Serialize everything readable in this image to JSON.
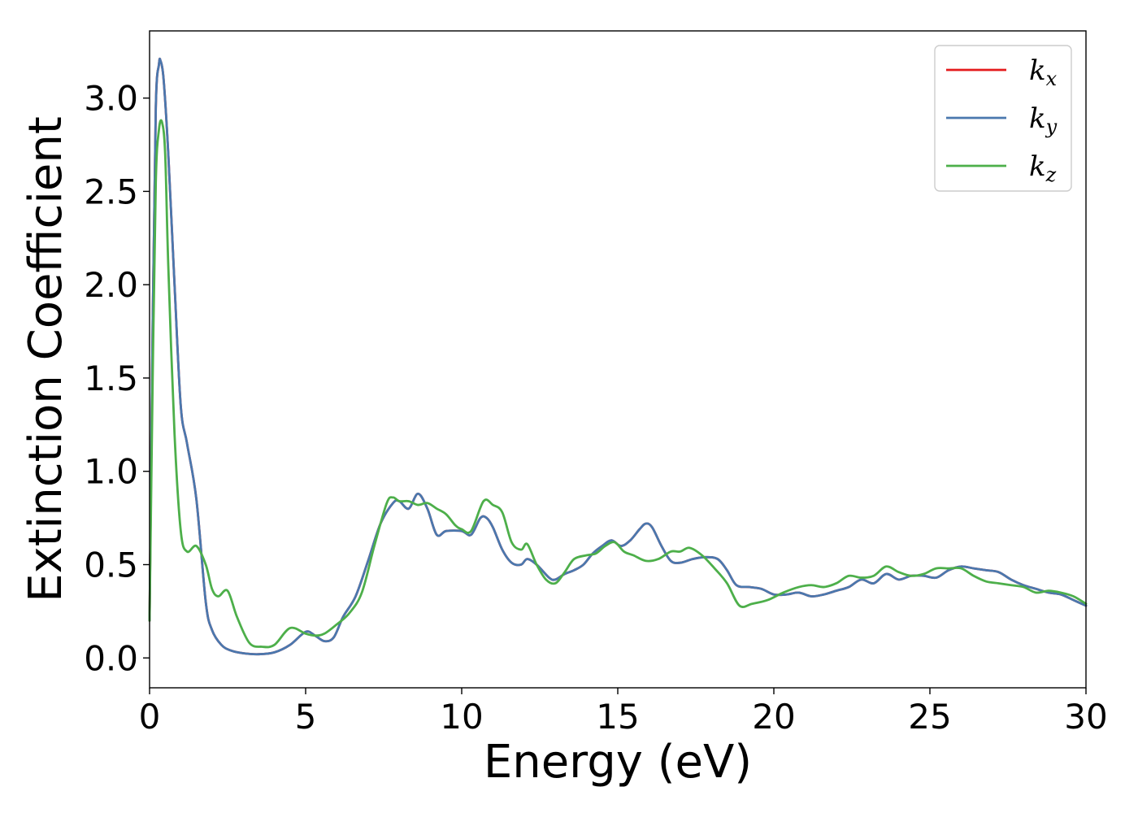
{
  "chart_data": {
    "type": "line",
    "title": "",
    "xlabel": "Energy (eV)",
    "ylabel": "Extinction Coefficient",
    "xlim": [
      0,
      30
    ],
    "ylim": [
      -0.16,
      3.36
    ],
    "xticks": [
      0,
      5,
      10,
      15,
      20,
      25,
      30
    ],
    "xtick_labels": [
      "0",
      "5",
      "10",
      "15",
      "20",
      "25",
      "30"
    ],
    "yticks": [
      0.0,
      0.5,
      1.0,
      1.5,
      2.0,
      2.5,
      3.0
    ],
    "ytick_labels": [
      "0.0",
      "0.5",
      "1.0",
      "1.5",
      "2.0",
      "2.5",
      "3.0"
    ],
    "grid": false,
    "legend_position": "top-right",
    "series": [
      {
        "name": "k_x",
        "label_base": "k",
        "label_sub": "x",
        "color": "#e41a1c",
        "x": [
          0.0,
          0.1,
          0.2,
          0.3,
          0.35,
          0.45,
          0.6,
          0.8,
          1.0,
          1.2,
          1.5,
          1.8,
          2.0,
          2.3,
          2.6,
          3.0,
          3.5,
          4.0,
          4.5,
          5.0,
          5.3,
          5.6,
          5.9,
          6.2,
          6.6,
          7.0,
          7.4,
          7.8,
          8.0,
          8.3,
          8.6,
          8.9,
          9.2,
          9.5,
          10.0,
          10.3,
          10.6,
          10.8,
          11.0,
          11.3,
          11.6,
          11.9,
          12.1,
          12.4,
          12.8,
          13.0,
          13.3,
          13.6,
          13.9,
          14.2,
          14.5,
          14.8,
          15.1,
          15.4,
          15.7,
          15.9,
          16.1,
          16.4,
          16.7,
          17.0,
          17.4,
          17.8,
          18.2,
          18.5,
          18.8,
          19.2,
          19.6,
          20.0,
          20.4,
          20.8,
          21.2,
          21.6,
          22.0,
          22.4,
          22.8,
          23.2,
          23.6,
          24.0,
          24.4,
          24.8,
          25.2,
          25.6,
          26.0,
          26.4,
          26.8,
          27.2,
          27.6,
          28.0,
          28.4,
          28.8,
          29.2,
          29.6,
          30.0
        ],
        "values": [
          0.2,
          1.8,
          2.95,
          3.18,
          3.2,
          3.1,
          2.7,
          2.0,
          1.35,
          1.15,
          0.85,
          0.3,
          0.15,
          0.07,
          0.04,
          0.025,
          0.02,
          0.03,
          0.07,
          0.14,
          0.12,
          0.09,
          0.11,
          0.22,
          0.33,
          0.52,
          0.72,
          0.83,
          0.84,
          0.8,
          0.88,
          0.8,
          0.66,
          0.68,
          0.68,
          0.66,
          0.75,
          0.75,
          0.7,
          0.58,
          0.51,
          0.5,
          0.53,
          0.5,
          0.43,
          0.42,
          0.45,
          0.47,
          0.5,
          0.56,
          0.6,
          0.63,
          0.6,
          0.63,
          0.69,
          0.72,
          0.7,
          0.6,
          0.52,
          0.51,
          0.53,
          0.54,
          0.53,
          0.47,
          0.39,
          0.38,
          0.37,
          0.34,
          0.34,
          0.35,
          0.33,
          0.34,
          0.36,
          0.38,
          0.42,
          0.4,
          0.45,
          0.42,
          0.44,
          0.44,
          0.43,
          0.47,
          0.49,
          0.48,
          0.47,
          0.46,
          0.42,
          0.39,
          0.37,
          0.35,
          0.34,
          0.31,
          0.28
        ]
      },
      {
        "name": "k_y",
        "label_base": "k",
        "label_sub": "y",
        "color": "#4a78ae",
        "x": [
          0.0,
          0.1,
          0.2,
          0.3,
          0.35,
          0.45,
          0.6,
          0.8,
          1.0,
          1.2,
          1.5,
          1.8,
          2.0,
          2.3,
          2.6,
          3.0,
          3.5,
          4.0,
          4.5,
          5.0,
          5.3,
          5.6,
          5.9,
          6.2,
          6.6,
          7.0,
          7.4,
          7.8,
          8.0,
          8.3,
          8.6,
          8.9,
          9.2,
          9.5,
          10.0,
          10.3,
          10.6,
          10.8,
          11.0,
          11.3,
          11.6,
          11.9,
          12.1,
          12.4,
          12.8,
          13.0,
          13.3,
          13.6,
          13.9,
          14.2,
          14.5,
          14.8,
          15.1,
          15.4,
          15.7,
          15.9,
          16.1,
          16.4,
          16.7,
          17.0,
          17.4,
          17.8,
          18.2,
          18.5,
          18.8,
          19.2,
          19.6,
          20.0,
          20.4,
          20.8,
          21.2,
          21.6,
          22.0,
          22.4,
          22.8,
          23.2,
          23.6,
          24.0,
          24.4,
          24.8,
          25.2,
          25.6,
          26.0,
          26.4,
          26.8,
          27.2,
          27.6,
          28.0,
          28.4,
          28.8,
          29.2,
          29.6,
          30.0
        ],
        "values": [
          0.2,
          1.8,
          2.95,
          3.18,
          3.2,
          3.1,
          2.7,
          2.0,
          1.35,
          1.15,
          0.85,
          0.3,
          0.15,
          0.07,
          0.04,
          0.025,
          0.02,
          0.03,
          0.07,
          0.14,
          0.12,
          0.09,
          0.11,
          0.22,
          0.33,
          0.52,
          0.72,
          0.83,
          0.84,
          0.8,
          0.88,
          0.8,
          0.66,
          0.68,
          0.68,
          0.66,
          0.75,
          0.75,
          0.7,
          0.58,
          0.51,
          0.5,
          0.53,
          0.5,
          0.43,
          0.42,
          0.45,
          0.47,
          0.5,
          0.56,
          0.6,
          0.63,
          0.6,
          0.63,
          0.69,
          0.72,
          0.7,
          0.6,
          0.52,
          0.51,
          0.53,
          0.54,
          0.53,
          0.47,
          0.39,
          0.38,
          0.37,
          0.34,
          0.34,
          0.35,
          0.33,
          0.34,
          0.36,
          0.38,
          0.42,
          0.4,
          0.45,
          0.42,
          0.44,
          0.44,
          0.43,
          0.47,
          0.49,
          0.48,
          0.47,
          0.46,
          0.42,
          0.39,
          0.37,
          0.35,
          0.34,
          0.31,
          0.28
        ]
      },
      {
        "name": "k_z",
        "label_base": "k",
        "label_sub": "z",
        "color": "#4daf4a",
        "x": [
          0.0,
          0.1,
          0.2,
          0.3,
          0.4,
          0.5,
          0.6,
          0.8,
          1.0,
          1.2,
          1.5,
          1.8,
          2.0,
          2.2,
          2.5,
          2.8,
          3.2,
          3.6,
          4.0,
          4.5,
          5.0,
          5.3,
          5.6,
          6.0,
          6.4,
          6.8,
          7.2,
          7.6,
          7.8,
          8.0,
          8.3,
          8.6,
          8.9,
          9.2,
          9.5,
          9.8,
          10.0,
          10.3,
          10.7,
          11.0,
          11.3,
          11.6,
          11.9,
          12.1,
          12.4,
          12.7,
          13.0,
          13.3,
          13.6,
          14.0,
          14.3,
          14.6,
          14.9,
          15.2,
          15.5,
          15.9,
          16.3,
          16.7,
          17.0,
          17.3,
          17.7,
          18.1,
          18.5,
          18.9,
          19.3,
          19.8,
          20.3,
          20.8,
          21.2,
          21.6,
          22.0,
          22.4,
          22.8,
          23.2,
          23.6,
          24.0,
          24.4,
          24.8,
          25.2,
          25.6,
          26.0,
          26.4,
          26.8,
          27.2,
          27.6,
          28.0,
          28.4,
          28.8,
          29.2,
          29.6,
          30.0
        ],
        "values": [
          0.2,
          1.5,
          2.55,
          2.83,
          2.87,
          2.7,
          2.1,
          1.2,
          0.68,
          0.57,
          0.6,
          0.5,
          0.37,
          0.33,
          0.36,
          0.22,
          0.08,
          0.06,
          0.07,
          0.16,
          0.13,
          0.12,
          0.13,
          0.18,
          0.24,
          0.35,
          0.6,
          0.83,
          0.86,
          0.84,
          0.84,
          0.82,
          0.83,
          0.8,
          0.77,
          0.71,
          0.69,
          0.68,
          0.84,
          0.82,
          0.78,
          0.62,
          0.58,
          0.61,
          0.5,
          0.42,
          0.4,
          0.46,
          0.53,
          0.55,
          0.56,
          0.6,
          0.62,
          0.57,
          0.55,
          0.52,
          0.53,
          0.57,
          0.57,
          0.59,
          0.55,
          0.48,
          0.4,
          0.28,
          0.29,
          0.31,
          0.35,
          0.38,
          0.39,
          0.38,
          0.4,
          0.44,
          0.43,
          0.44,
          0.49,
          0.46,
          0.44,
          0.45,
          0.48,
          0.48,
          0.48,
          0.44,
          0.41,
          0.4,
          0.39,
          0.38,
          0.35,
          0.36,
          0.35,
          0.33,
          0.29
        ]
      }
    ]
  }
}
